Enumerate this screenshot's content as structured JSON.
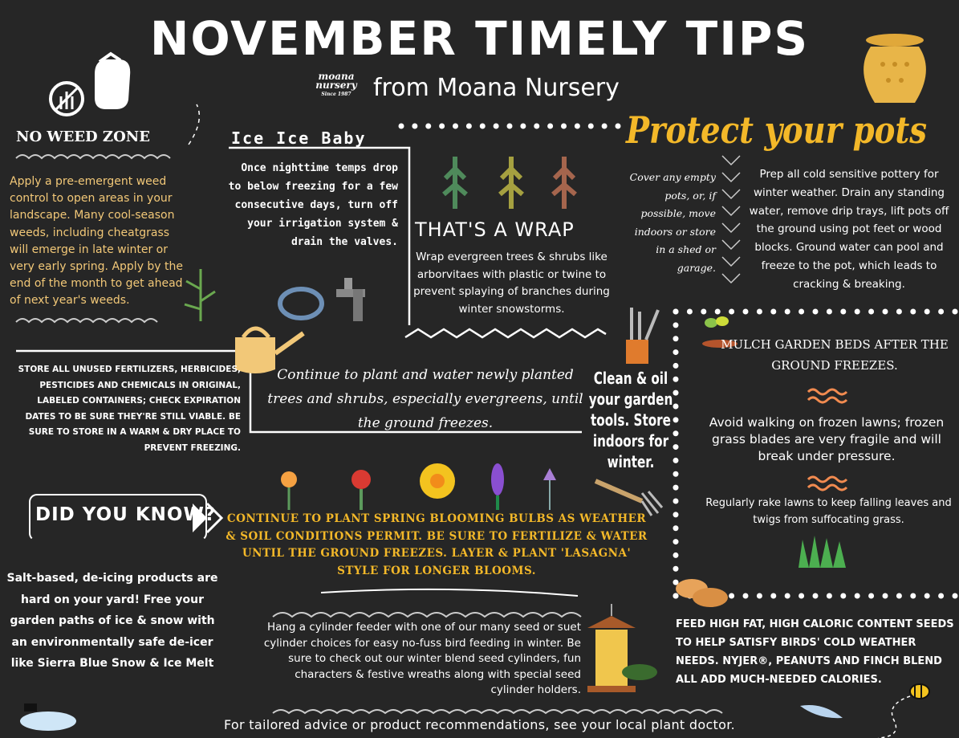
{
  "header": {
    "title": "NOVEMBER TIMELY TIPS",
    "subtitle": "from Moana Nursery",
    "logo": {
      "line1": "moana",
      "line2": "nursery",
      "since": "Since 1987"
    }
  },
  "colors": {
    "background": "#262626",
    "accent_yellow": "#f3b829",
    "text_peach": "#f2c878",
    "text": "#ffffff"
  },
  "weeds": {
    "title": "NO WEED ZONE",
    "text": "Apply a pre-emergent weed control to open areas in your landscape.  Many cool-season weeds, including cheatgrass will emerge in late winter or very early spring.  Apply by the end of the month to get ahead of next year's weeds."
  },
  "irrigation": {
    "title": "Ice Ice Baby",
    "text": "Once nighttime temps drop to below freezing for a few consecutive days, turn off your irrigation system & drain the valves."
  },
  "wrap": {
    "title": "THAT'S A WRAP",
    "text": "Wrap evergreen trees & shrubs like arborvitaes with plastic or twine to prevent splaying of branches during winter snowstorms."
  },
  "pots": {
    "title": "Protect your pots",
    "side_text": "Cover any empty pots, or, if possible, move indoors or store in a shed or garage.",
    "text": "Prep all cold sensitive pottery for winter weather. Drain any standing water, remove drip trays, lift pots off the ground using pot feet or wood blocks. Ground water can pool and freeze to the pot, which leads to cracking & breaking."
  },
  "chemicals": {
    "text": "Store all unused fertilizers, herbicides, pesticides and chemicals in original, labeled containers; check expiration dates to be sure they're still viable. Be sure to store in a warm & dry place to prevent freezing."
  },
  "planting": {
    "text": "Continue to plant and water newly planted trees and shrubs, especially evergreens, until the ground freezes."
  },
  "tools": {
    "text": "Clean & oil your garden tools. Store indoors for winter."
  },
  "lawn": {
    "mulch": "MULCH GARDEN BEDS AFTER THE GROUND FREEZES.",
    "frozen": "Avoid walking on frozen lawns; frozen grass blades are very fragile and will break under pressure.",
    "rake": "Regularly rake lawns to keep falling leaves and twigs from suffocating grass."
  },
  "did_you_know": {
    "title": "DID YOU KNOW?",
    "text": "Salt-based, de-icing products are hard on your yard! Free your garden paths of ice & snow with an environmentally safe de-icer like Sierra Blue Snow & Ice Melt"
  },
  "bulbs": {
    "text": "Continue to plant spring blooming bulbs as weather & soil conditions permit. Be sure to fertilize & water until the ground freezes. Layer & plant 'lasagna' style for longer blooms."
  },
  "birds": {
    "feeder_text": "Hang a cylinder feeder with one of our many seed or suet cylinder choices for easy no-fuss bird feeding in winter. Be sure to check out our winter blend seed cylinders, fun characters & festive wreaths along with special seed cylinder holders.",
    "seeds_text": "Feed high fat, high caloric content seeds to help satisfy birds' cold weather needs. Nyjer®, peanuts and finch blend all add much-needed calories."
  },
  "footer": {
    "text": "For tailored advice or product recommendations, see your local plant doctor."
  },
  "icons": [
    "no-weed-icon",
    "gloves-icon",
    "pot-icon",
    "tree-icon",
    "hose-faucet-icon",
    "watering-can-icon",
    "garden-tools-icon",
    "sprout-icon",
    "wave-icon",
    "grass-icon",
    "flower-icon",
    "peanut-icon",
    "bird-feeder-icon",
    "bee-icon",
    "feather-icon",
    "snowman-icon",
    "double-chevron-icon"
  ]
}
